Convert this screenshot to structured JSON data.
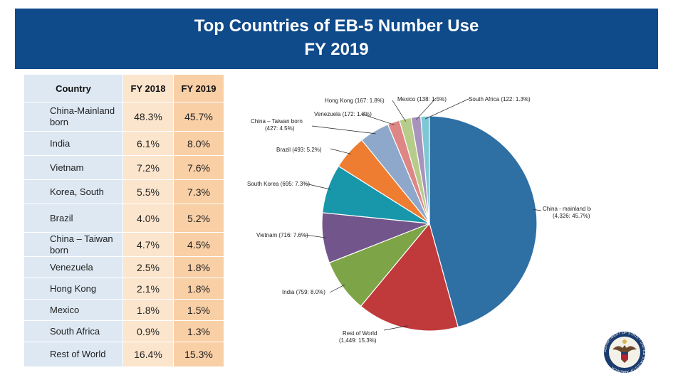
{
  "header": {
    "title_line1": "Top Countries of EB-5 Number Use",
    "title_line2": "FY 2019"
  },
  "table": {
    "headers": [
      "Country",
      "FY 2018",
      "FY 2019"
    ],
    "rows": [
      {
        "country": "China-Mainland born",
        "fy2018": "48.3%",
        "fy2019": "45.7%"
      },
      {
        "country": "India",
        "fy2018": "6.1%",
        "fy2019": "8.0%"
      },
      {
        "country": "Vietnam",
        "fy2018": "7.2%",
        "fy2019": "7.6%"
      },
      {
        "country": "Korea, South",
        "fy2018": "5.5%",
        "fy2019": "7.3%"
      },
      {
        "country": "Brazil",
        "fy2018": "4.0%",
        "fy2019": "5.2%"
      },
      {
        "country": "China – Taiwan born",
        "fy2018": "4.7%",
        "fy2019": "4.5%"
      },
      {
        "country": "Venezuela",
        "fy2018": "2.5%",
        "fy2019": "1.8%"
      },
      {
        "country": "Hong Kong",
        "fy2018": "2.1%",
        "fy2019": "1.8%"
      },
      {
        "country": "Mexico",
        "fy2018": "1.8%",
        "fy2019": "1.5%"
      },
      {
        "country": "South Africa",
        "fy2018": "0.9%",
        "fy2019": "1.3%"
      },
      {
        "country": "Rest of World",
        "fy2018": "16.4%",
        "fy2019": "15.3%"
      }
    ]
  },
  "chart_data": {
    "type": "pie",
    "title": "",
    "slices": [
      {
        "name": "China - mainland born",
        "value": 4326,
        "percent": 45.7,
        "label": [
          "China - mainland born",
          "(4,326: 45.7%)"
        ],
        "color": "#2e6fa4"
      },
      {
        "name": "Rest of World",
        "value": 1449,
        "percent": 15.3,
        "label": [
          "Rest of World",
          "(1,449: 15.3%)"
        ],
        "color": "#c0393b"
      },
      {
        "name": "India",
        "value": 759,
        "percent": 8.0,
        "label": [
          "India (759: 8.0%)"
        ],
        "color": "#7da446"
      },
      {
        "name": "Vietnam",
        "value": 716,
        "percent": 7.6,
        "label": [
          "Vietnam (716: 7.6%)"
        ],
        "color": "#72558a"
      },
      {
        "name": "South Korea",
        "value": 695,
        "percent": 7.3,
        "label": [
          "South Korea (695: 7.3%)"
        ],
        "color": "#1897ab"
      },
      {
        "name": "Brazil",
        "value": 493,
        "percent": 5.2,
        "label": [
          "Brazil (493: 5.2%)"
        ],
        "color": "#ee7d31"
      },
      {
        "name": "China – Taiwan born",
        "value": 427,
        "percent": 4.5,
        "label": [
          "China – Taiwan born",
          "(427: 4.5%)"
        ],
        "color": "#8ea8cb"
      },
      {
        "name": "Venezuela",
        "value": 172,
        "percent": 1.8,
        "label": [
          "Venezuela (172: 1.8%)"
        ],
        "color": "#de8685"
      },
      {
        "name": "Hong Kong",
        "value": 167,
        "percent": 1.8,
        "label": [
          "Hong Kong (167: 1.8%)"
        ],
        "color": "#b7cc8a"
      },
      {
        "name": "Mexico",
        "value": 138,
        "percent": 1.5,
        "label": [
          "Mexico (138: 1.5%)"
        ],
        "color": "#a893bd"
      },
      {
        "name": "South Africa",
        "value": 122,
        "percent": 1.3,
        "label": [
          "South Africa (122: 1.3%)"
        ],
        "color": "#7ec8d6"
      }
    ]
  },
  "seal": {
    "text": "DEPARTMENT OF STATE • UNITED STATES OF AMERICA",
    "colors": {
      "ring": "#1a3c6e",
      "field": "#f4f1e8",
      "eagle": "#6b4a2b"
    }
  },
  "colors": {
    "banner": "#0f4a8a",
    "country_col": "#dde8f3",
    "fy2018_col": "#fce5cd",
    "fy2019_col": "#f9cfa6"
  }
}
